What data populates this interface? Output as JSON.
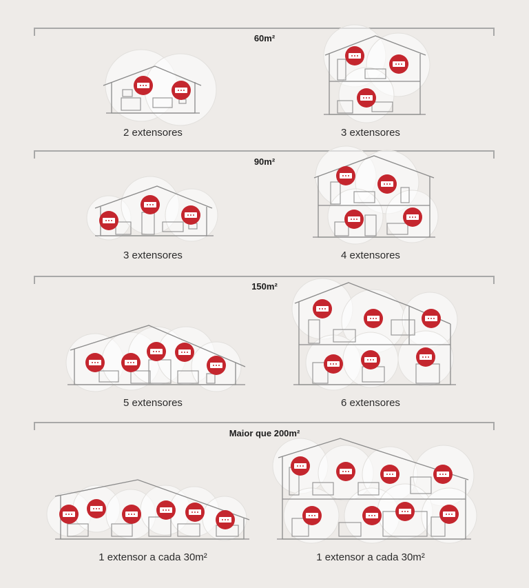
{
  "brand_color": "#c4262e",
  "sections": [
    {
      "title": "60m²",
      "left_caption": "2 extensores",
      "right_caption": "3 extensores"
    },
    {
      "title": "90m²",
      "left_caption": "3 extensores",
      "right_caption": "4 extensores"
    },
    {
      "title": "150m²",
      "left_caption": "5 extensores",
      "right_caption": "6 extensores"
    },
    {
      "title": "Maior que 200m²",
      "left_caption": "1 extensor a cada 30m²",
      "right_caption": "1 extensor a cada 30m²"
    }
  ],
  "icons": {
    "extender": "wifi-extender-icon",
    "house": "house-outline-icon"
  }
}
